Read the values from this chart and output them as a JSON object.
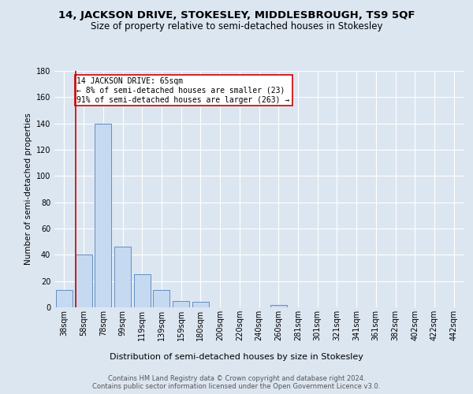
{
  "title1": "14, JACKSON DRIVE, STOKESLEY, MIDDLESBROUGH, TS9 5QF",
  "title2": "Size of property relative to semi-detached houses in Stokesley",
  "xlabel": "Distribution of semi-detached houses by size in Stokesley",
  "ylabel": "Number of semi-detached properties",
  "footer1": "Contains HM Land Registry data © Crown copyright and database right 2024.",
  "footer2": "Contains public sector information licensed under the Open Government Licence v3.0.",
  "bar_labels": [
    "38sqm",
    "58sqm",
    "78sqm",
    "99sqm",
    "119sqm",
    "139sqm",
    "159sqm",
    "180sqm",
    "200sqm",
    "220sqm",
    "240sqm",
    "260sqm",
    "281sqm",
    "301sqm",
    "321sqm",
    "341sqm",
    "361sqm",
    "382sqm",
    "402sqm",
    "422sqm",
    "442sqm"
  ],
  "bar_values": [
    13,
    40,
    140,
    46,
    25,
    13,
    5,
    4,
    0,
    0,
    0,
    2,
    0,
    0,
    0,
    0,
    0,
    0,
    0,
    0,
    0
  ],
  "bar_color": "#c5d9f1",
  "bar_edge_color": "#4f81bd",
  "subject_line_color": "#cc0000",
  "annotation_title": "14 JACKSON DRIVE: 65sqm",
  "annotation_line1": "← 8% of semi-detached houses are smaller (23)",
  "annotation_line2": "91% of semi-detached houses are larger (263) →",
  "annotation_box_color": "#ffffff",
  "annotation_box_edge_color": "#cc0000",
  "ylim": [
    0,
    180
  ],
  "yticks": [
    0,
    20,
    40,
    60,
    80,
    100,
    120,
    140,
    160,
    180
  ],
  "bg_color": "#dce6f1",
  "plot_bg_color": "#dce6f1",
  "grid_color": "#ffffff",
  "title1_fontsize": 9.5,
  "title2_fontsize": 8.5,
  "ylabel_fontsize": 7.5,
  "xlabel_fontsize": 8,
  "tick_fontsize": 7,
  "annotation_fontsize": 7,
  "footer_fontsize": 6
}
